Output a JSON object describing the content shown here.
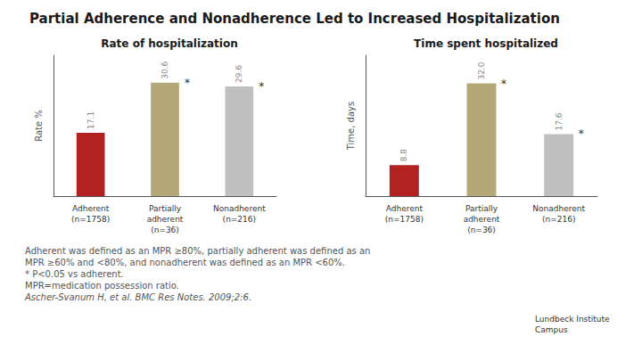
{
  "title": "Partial Adherence and Nonadherence Led to Increased Hospitalization",
  "footnotes": [
    "Adherent was defined as an MPR ≥80%, partially adherent was defined as an",
    "MPR ≥60% and <80%, and nonadherent was defined as an MPR <60%.",
    "* P<0.05 vs adherent.",
    "MPR=medication possession ratio.",
    "Ascher-Svanum H, et al. BMC Res Notes. 2009;2:6."
  ],
  "annotations": [
    "Lundbeck Institute\nCampus"
  ],
  "chart_data": [
    {
      "type": "bar",
      "title": "Rate of hospitalization",
      "y_label": "Rate %",
      "categories": [
        "Adherent\n(n=1758)",
        "Partially\nadherent\n(n=36)",
        "Nonadherent\n(n=216)"
      ],
      "values": [
        17.1,
        30.6,
        29.6
      ],
      "colors": [
        "#b22222",
        "#b5a878",
        "#c0c0c0"
      ],
      "ylim": [
        0,
        38
      ],
      "grid": false,
      "tick_labels": "x",
      "data_labels": true,
      "annotations": [
        {
          "category": "Partially\nadherent\n(n=36)",
          "text": "*"
        },
        {
          "category": "Nonadherent\n(n=216)",
          "text": "*"
        }
      ]
    },
    {
      "type": "bar",
      "title": "Time spent hospitalized",
      "y_label": "Time, days",
      "categories": [
        "Adherent\n(n=1758)",
        "Partially\nadherent\n(n=36)",
        "Nonadherent\n(n=216)"
      ],
      "values": [
        8.8,
        32.0,
        17.6
      ],
      "value_labels": [
        "8.8",
        "32.0",
        "17.6"
      ],
      "colors": [
        "#b22222",
        "#b5a878",
        "#c0c0c0"
      ],
      "ylim": [
        0,
        40
      ],
      "grid": false,
      "tick_labels": "x",
      "data_labels": true,
      "annotations": [
        {
          "category": "Partially\nadherent\n(n=36)",
          "text": "*"
        },
        {
          "category": "Nonadherent\n(n=216)",
          "text": "*"
        }
      ]
    }
  ]
}
